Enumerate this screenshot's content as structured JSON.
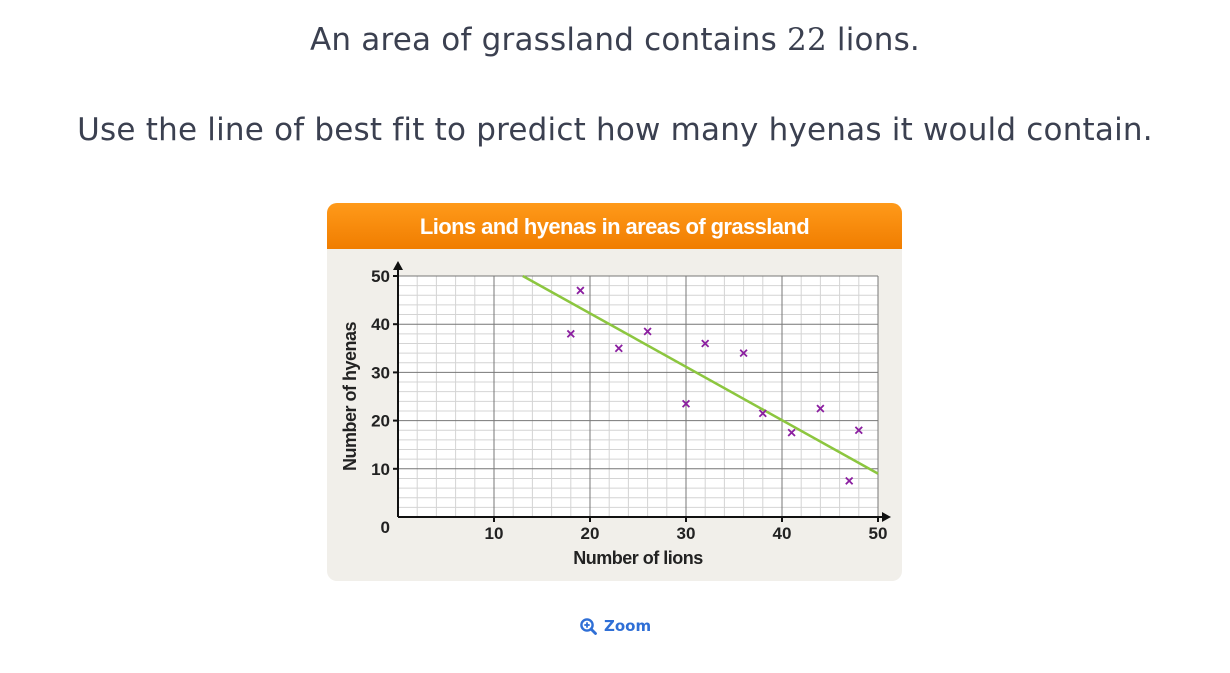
{
  "question": {
    "line1_before": "An area of grassland contains ",
    "line1_number": "22",
    "line1_after": " lions.",
    "line2": "Use the line of best fit to predict how many hyenas it would contain."
  },
  "zoom": {
    "label": "Zoom",
    "icon": "zoom-in-icon"
  },
  "chart_data": {
    "type": "scatter",
    "title": "Lions and hyenas in areas of grassland",
    "xlabel": "Number of lions",
    "ylabel": "Number of hyenas",
    "xlim": [
      0,
      50
    ],
    "ylim": [
      0,
      50
    ],
    "x_ticks": [
      10,
      20,
      30,
      40,
      50
    ],
    "y_ticks": [
      10,
      20,
      30,
      40,
      50
    ],
    "origin_label": "0",
    "grid": true,
    "marker": "x",
    "colors": {
      "header": "#f68b0a",
      "points": "#8b1fa0",
      "best_fit": "#8cc63f",
      "grid_major": "#777777",
      "grid_minor": "#d4d4d4"
    },
    "points": [
      {
        "x": 18,
        "y": 38
      },
      {
        "x": 19,
        "y": 47
      },
      {
        "x": 23,
        "y": 35
      },
      {
        "x": 26,
        "y": 38.5
      },
      {
        "x": 30,
        "y": 23.5
      },
      {
        "x": 32,
        "y": 36
      },
      {
        "x": 36,
        "y": 34
      },
      {
        "x": 38,
        "y": 21.5
      },
      {
        "x": 41,
        "y": 17.5
      },
      {
        "x": 44,
        "y": 22.5
      },
      {
        "x": 47,
        "y": 7.5
      },
      {
        "x": 48,
        "y": 18
      }
    ],
    "best_fit_line": {
      "x1": 13,
      "y1": 50,
      "x2": 50,
      "y2": 9
    }
  }
}
